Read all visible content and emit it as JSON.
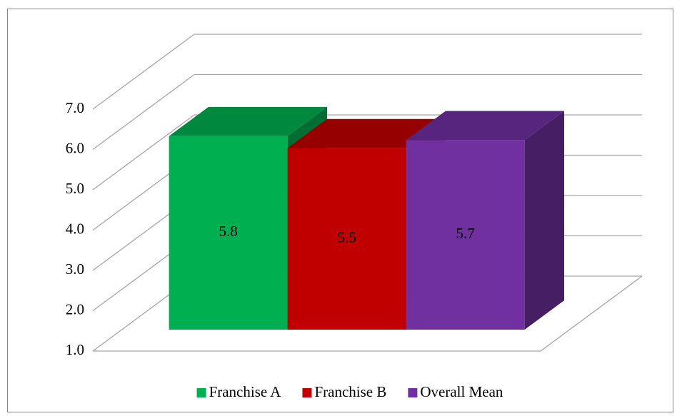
{
  "chart_data": {
    "type": "bar3d",
    "categories": [
      null
    ],
    "series": [
      {
        "name": "Franchise A",
        "color": "#00b050",
        "values": [
          5.8
        ]
      },
      {
        "name": "Franchise B",
        "color": "#c00000",
        "values": [
          5.5
        ]
      },
      {
        "name": "Overall Mean",
        "color": "#7030a0",
        "values": [
          5.7
        ]
      }
    ],
    "ylim": [
      1,
      7
    ],
    "yticks": [
      {
        "value": 1,
        "label": "1.0"
      },
      {
        "value": 2,
        "label": "2.0"
      },
      {
        "value": 3,
        "label": "3.0"
      },
      {
        "value": 4,
        "label": "4.0"
      },
      {
        "value": 5,
        "label": "5.0"
      },
      {
        "value": 6,
        "label": "6.0"
      },
      {
        "value": 7,
        "label": "7.0"
      }
    ],
    "grid": true,
    "legend": "bottom"
  }
}
